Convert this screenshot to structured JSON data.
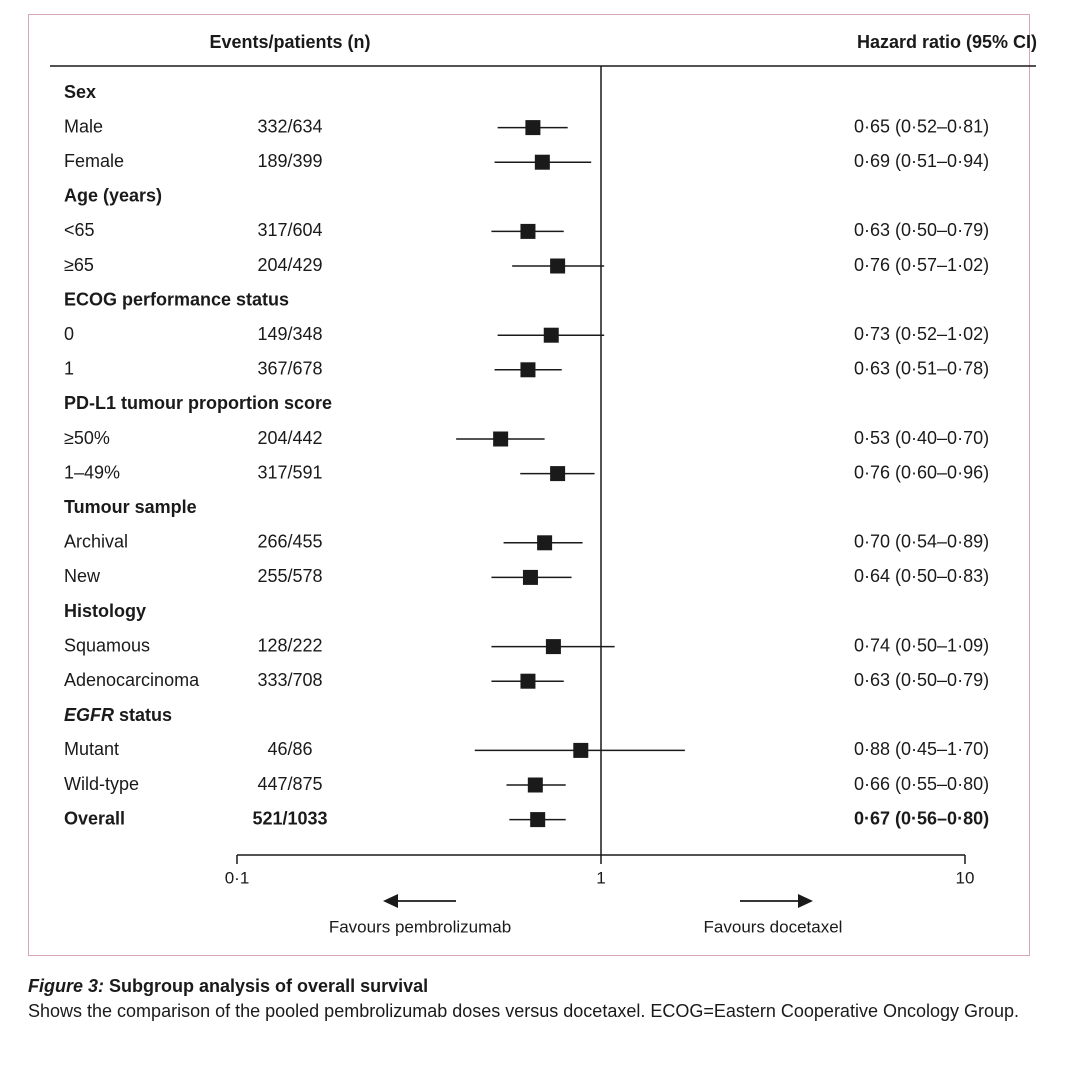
{
  "chart_data": {
    "type": "forest",
    "columns": {
      "events": "Events/patients (n)",
      "hr": "Hazard ratio (95% CI)"
    },
    "x_axis": {
      "scale": "log",
      "range": [
        0.1,
        10
      ],
      "ticks": [
        {
          "value": 0.1,
          "label": "0·1"
        },
        {
          "value": 1,
          "label": "1"
        },
        {
          "value": 10,
          "label": "10"
        }
      ],
      "reference_line": 1
    },
    "direction_labels": {
      "left": "Favours pembrolizumab",
      "right": "Favours docetaxel"
    },
    "rows": [
      {
        "kind": "group",
        "label": "Sex"
      },
      {
        "kind": "sub",
        "label": "Male",
        "events": "332/634",
        "hr": 0.65,
        "lo": 0.52,
        "hi": 0.81,
        "hr_text": "0·65 (0·52–0·81)"
      },
      {
        "kind": "sub",
        "label": "Female",
        "events": "189/399",
        "hr": 0.69,
        "lo": 0.51,
        "hi": 0.94,
        "hr_text": "0·69 (0·51–0·94)"
      },
      {
        "kind": "group",
        "label": "Age (years)"
      },
      {
        "kind": "sub",
        "label": "<65",
        "events": "317/604",
        "hr": 0.63,
        "lo": 0.5,
        "hi": 0.79,
        "hr_text": "0·63 (0·50–0·79)"
      },
      {
        "kind": "sub",
        "label": "≥65",
        "events": "204/429",
        "hr": 0.76,
        "lo": 0.57,
        "hi": 1.02,
        "hr_text": "0·76 (0·57–1·02)"
      },
      {
        "kind": "group",
        "label": "ECOG performance status"
      },
      {
        "kind": "sub",
        "label": "0",
        "events": "149/348",
        "hr": 0.73,
        "lo": 0.52,
        "hi": 1.02,
        "hr_text": "0·73 (0·52–1·02)"
      },
      {
        "kind": "sub",
        "label": "1",
        "events": "367/678",
        "hr": 0.63,
        "lo": 0.51,
        "hi": 0.78,
        "hr_text": "0·63 (0·51–0·78)"
      },
      {
        "kind": "group",
        "label": "PD-L1 tumour proportion score"
      },
      {
        "kind": "sub",
        "label": "≥50%",
        "events": "204/442",
        "hr": 0.53,
        "lo": 0.4,
        "hi": 0.7,
        "hr_text": "0·53 (0·40–0·70)"
      },
      {
        "kind": "sub",
        "label": "1–49%",
        "events": "317/591",
        "hr": 0.76,
        "lo": 0.6,
        "hi": 0.96,
        "hr_text": "0·76 (0·60–0·96)"
      },
      {
        "kind": "group",
        "label": "Tumour sample"
      },
      {
        "kind": "sub",
        "label": "Archival",
        "events": "266/455",
        "hr": 0.7,
        "lo": 0.54,
        "hi": 0.89,
        "hr_text": "0·70 (0·54–0·89)"
      },
      {
        "kind": "sub",
        "label": "New",
        "events": "255/578",
        "hr": 0.64,
        "lo": 0.5,
        "hi": 0.83,
        "hr_text": "0·64 (0·50–0·83)"
      },
      {
        "kind": "group",
        "label": "Histology"
      },
      {
        "kind": "sub",
        "label": "Squamous",
        "events": "128/222",
        "hr": 0.74,
        "lo": 0.5,
        "hi": 1.09,
        "hr_text": "0·74 (0·50–1·09)"
      },
      {
        "kind": "sub",
        "label": "Adenocarcinoma",
        "events": "333/708",
        "hr": 0.63,
        "lo": 0.5,
        "hi": 0.79,
        "hr_text": "0·63 (0·50–0·79)"
      },
      {
        "kind": "group",
        "label": "EGFR status",
        "italic_word": "EGFR",
        "rest": " status"
      },
      {
        "kind": "sub",
        "label": "Mutant",
        "events": "46/86",
        "hr": 0.88,
        "lo": 0.45,
        "hi": 1.7,
        "hr_text": "0·88 (0·45–1·70)"
      },
      {
        "kind": "sub",
        "label": "Wild-type",
        "events": "447/875",
        "hr": 0.66,
        "lo": 0.55,
        "hi": 0.8,
        "hr_text": "0·66 (0·55–0·80)"
      },
      {
        "kind": "overall",
        "label": "Overall",
        "events": "521/1033",
        "hr": 0.67,
        "lo": 0.56,
        "hi": 0.8,
        "hr_text": "0·67 (0·56–0·80)"
      }
    ]
  },
  "caption": {
    "figure_label": "Figure 3:",
    "title": " Subgroup analysis of overall survival",
    "text": "Shows the comparison of the pooled pembrolizumab doses versus docetaxel. ECOG=Eastern Cooperative Oncology Group."
  },
  "colors": {
    "frame": "#d8a6b6",
    "ink": "#1a1a1a"
  }
}
